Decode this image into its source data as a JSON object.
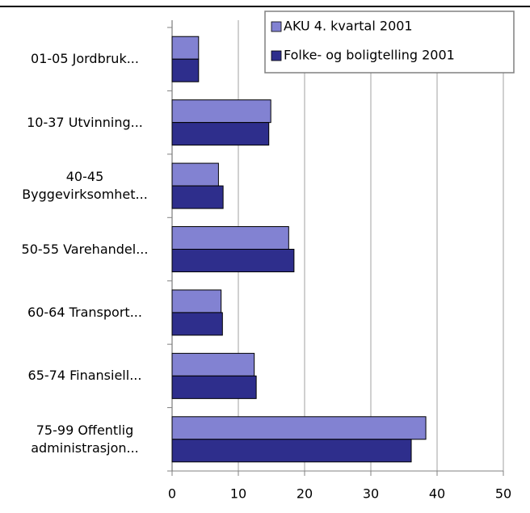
{
  "chart_data": {
    "type": "hbar",
    "categories": [
      "01-05 Jordbruk...",
      "10-37 Utvinning...",
      "40-45 Byggevirksomhet...",
      "50-55 Varehandel...",
      "60-64 Transport...",
      "65-74 Finansiell...",
      "75-99 Offentlig administrasjon..."
    ],
    "series": [
      {
        "name": "AKU 4. kvartal 2001",
        "color": "#8282d2",
        "values": [
          4.0,
          14.9,
          7.0,
          17.6,
          7.4,
          12.4,
          38.3
        ]
      },
      {
        "name": "Folke- og boligtelling 2001",
        "color": "#2e2e8c",
        "values": [
          4.0,
          14.6,
          7.7,
          18.4,
          7.6,
          12.7,
          36.1
        ]
      }
    ],
    "xlim": [
      0,
      50
    ],
    "xticks": [
      0,
      10,
      20,
      30,
      40,
      50
    ],
    "grid": true,
    "legend": "top-right"
  }
}
